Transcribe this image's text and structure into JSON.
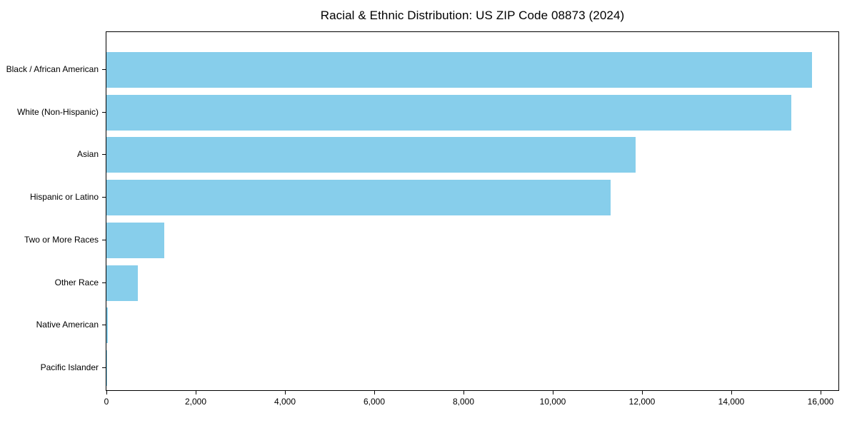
{
  "chart_data": {
    "type": "bar",
    "orientation": "horizontal",
    "title": "Racial & Ethnic Distribution: US ZIP Code 08873 (2024)",
    "categories": [
      "Black / African American",
      "White (Non-Hispanic)",
      "Asian",
      "Hispanic or Latino",
      "Two or More Races",
      "Other Race",
      "Native American",
      "Pacific Islander"
    ],
    "values": [
      15800,
      15350,
      11850,
      11300,
      1300,
      700,
      25,
      10
    ],
    "x_ticks": [
      0,
      2000,
      4000,
      6000,
      8000,
      10000,
      12000,
      14000,
      16000
    ],
    "x_tick_labels": [
      "0",
      "2,000",
      "4,000",
      "6,000",
      "8,000",
      "10,000",
      "12,000",
      "14,000",
      "16,000"
    ],
    "xlim": [
      0,
      16400
    ],
    "xlabel": "",
    "ylabel": "",
    "bar_color": "#87CEEB",
    "axis_color": "#000000",
    "background_color": "#ffffff",
    "grid": false,
    "legend": false
  }
}
